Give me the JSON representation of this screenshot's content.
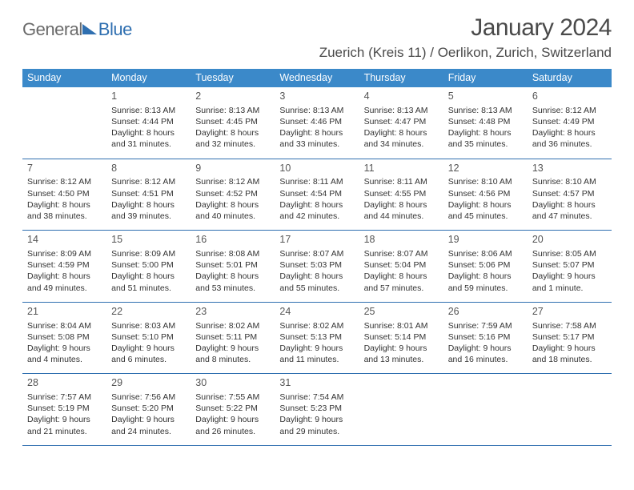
{
  "logo": {
    "general": "General",
    "blue": "Blue"
  },
  "title": "January 2024",
  "location": "Zuerich (Kreis 11) / Oerlikon, Zurich, Switzerland",
  "colors": {
    "header_bg": "#3b89c9",
    "header_text": "#ffffff",
    "row_border": "#2f6fb0",
    "body_text": "#333333",
    "title_text": "#4a4a4a",
    "logo_gray": "#6a6a6a",
    "logo_blue": "#2f6fb0",
    "page_bg": "#ffffff"
  },
  "typography": {
    "title_fontsize": 30,
    "location_fontsize": 17,
    "dayhead_fontsize": 12.5,
    "daynum_fontsize": 12.5,
    "cell_fontsize": 10.5
  },
  "day_names": [
    "Sunday",
    "Monday",
    "Tuesday",
    "Wednesday",
    "Thursday",
    "Friday",
    "Saturday"
  ],
  "weeks": [
    [
      {
        "n": "",
        "lines": []
      },
      {
        "n": "1",
        "lines": [
          "Sunrise: 8:13 AM",
          "Sunset: 4:44 PM",
          "Daylight: 8 hours",
          "and 31 minutes."
        ]
      },
      {
        "n": "2",
        "lines": [
          "Sunrise: 8:13 AM",
          "Sunset: 4:45 PM",
          "Daylight: 8 hours",
          "and 32 minutes."
        ]
      },
      {
        "n": "3",
        "lines": [
          "Sunrise: 8:13 AM",
          "Sunset: 4:46 PM",
          "Daylight: 8 hours",
          "and 33 minutes."
        ]
      },
      {
        "n": "4",
        "lines": [
          "Sunrise: 8:13 AM",
          "Sunset: 4:47 PM",
          "Daylight: 8 hours",
          "and 34 minutes."
        ]
      },
      {
        "n": "5",
        "lines": [
          "Sunrise: 8:13 AM",
          "Sunset: 4:48 PM",
          "Daylight: 8 hours",
          "and 35 minutes."
        ]
      },
      {
        "n": "6",
        "lines": [
          "Sunrise: 8:12 AM",
          "Sunset: 4:49 PM",
          "Daylight: 8 hours",
          "and 36 minutes."
        ]
      }
    ],
    [
      {
        "n": "7",
        "lines": [
          "Sunrise: 8:12 AM",
          "Sunset: 4:50 PM",
          "Daylight: 8 hours",
          "and 38 minutes."
        ]
      },
      {
        "n": "8",
        "lines": [
          "Sunrise: 8:12 AM",
          "Sunset: 4:51 PM",
          "Daylight: 8 hours",
          "and 39 minutes."
        ]
      },
      {
        "n": "9",
        "lines": [
          "Sunrise: 8:12 AM",
          "Sunset: 4:52 PM",
          "Daylight: 8 hours",
          "and 40 minutes."
        ]
      },
      {
        "n": "10",
        "lines": [
          "Sunrise: 8:11 AM",
          "Sunset: 4:54 PM",
          "Daylight: 8 hours",
          "and 42 minutes."
        ]
      },
      {
        "n": "11",
        "lines": [
          "Sunrise: 8:11 AM",
          "Sunset: 4:55 PM",
          "Daylight: 8 hours",
          "and 44 minutes."
        ]
      },
      {
        "n": "12",
        "lines": [
          "Sunrise: 8:10 AM",
          "Sunset: 4:56 PM",
          "Daylight: 8 hours",
          "and 45 minutes."
        ]
      },
      {
        "n": "13",
        "lines": [
          "Sunrise: 8:10 AM",
          "Sunset: 4:57 PM",
          "Daylight: 8 hours",
          "and 47 minutes."
        ]
      }
    ],
    [
      {
        "n": "14",
        "lines": [
          "Sunrise: 8:09 AM",
          "Sunset: 4:59 PM",
          "Daylight: 8 hours",
          "and 49 minutes."
        ]
      },
      {
        "n": "15",
        "lines": [
          "Sunrise: 8:09 AM",
          "Sunset: 5:00 PM",
          "Daylight: 8 hours",
          "and 51 minutes."
        ]
      },
      {
        "n": "16",
        "lines": [
          "Sunrise: 8:08 AM",
          "Sunset: 5:01 PM",
          "Daylight: 8 hours",
          "and 53 minutes."
        ]
      },
      {
        "n": "17",
        "lines": [
          "Sunrise: 8:07 AM",
          "Sunset: 5:03 PM",
          "Daylight: 8 hours",
          "and 55 minutes."
        ]
      },
      {
        "n": "18",
        "lines": [
          "Sunrise: 8:07 AM",
          "Sunset: 5:04 PM",
          "Daylight: 8 hours",
          "and 57 minutes."
        ]
      },
      {
        "n": "19",
        "lines": [
          "Sunrise: 8:06 AM",
          "Sunset: 5:06 PM",
          "Daylight: 8 hours",
          "and 59 minutes."
        ]
      },
      {
        "n": "20",
        "lines": [
          "Sunrise: 8:05 AM",
          "Sunset: 5:07 PM",
          "Daylight: 9 hours",
          "and 1 minute."
        ]
      }
    ],
    [
      {
        "n": "21",
        "lines": [
          "Sunrise: 8:04 AM",
          "Sunset: 5:08 PM",
          "Daylight: 9 hours",
          "and 4 minutes."
        ]
      },
      {
        "n": "22",
        "lines": [
          "Sunrise: 8:03 AM",
          "Sunset: 5:10 PM",
          "Daylight: 9 hours",
          "and 6 minutes."
        ]
      },
      {
        "n": "23",
        "lines": [
          "Sunrise: 8:02 AM",
          "Sunset: 5:11 PM",
          "Daylight: 9 hours",
          "and 8 minutes."
        ]
      },
      {
        "n": "24",
        "lines": [
          "Sunrise: 8:02 AM",
          "Sunset: 5:13 PM",
          "Daylight: 9 hours",
          "and 11 minutes."
        ]
      },
      {
        "n": "25",
        "lines": [
          "Sunrise: 8:01 AM",
          "Sunset: 5:14 PM",
          "Daylight: 9 hours",
          "and 13 minutes."
        ]
      },
      {
        "n": "26",
        "lines": [
          "Sunrise: 7:59 AM",
          "Sunset: 5:16 PM",
          "Daylight: 9 hours",
          "and 16 minutes."
        ]
      },
      {
        "n": "27",
        "lines": [
          "Sunrise: 7:58 AM",
          "Sunset: 5:17 PM",
          "Daylight: 9 hours",
          "and 18 minutes."
        ]
      }
    ],
    [
      {
        "n": "28",
        "lines": [
          "Sunrise: 7:57 AM",
          "Sunset: 5:19 PM",
          "Daylight: 9 hours",
          "and 21 minutes."
        ]
      },
      {
        "n": "29",
        "lines": [
          "Sunrise: 7:56 AM",
          "Sunset: 5:20 PM",
          "Daylight: 9 hours",
          "and 24 minutes."
        ]
      },
      {
        "n": "30",
        "lines": [
          "Sunrise: 7:55 AM",
          "Sunset: 5:22 PM",
          "Daylight: 9 hours",
          "and 26 minutes."
        ]
      },
      {
        "n": "31",
        "lines": [
          "Sunrise: 7:54 AM",
          "Sunset: 5:23 PM",
          "Daylight: 9 hours",
          "and 29 minutes."
        ]
      },
      {
        "n": "",
        "lines": []
      },
      {
        "n": "",
        "lines": []
      },
      {
        "n": "",
        "lines": []
      }
    ]
  ]
}
